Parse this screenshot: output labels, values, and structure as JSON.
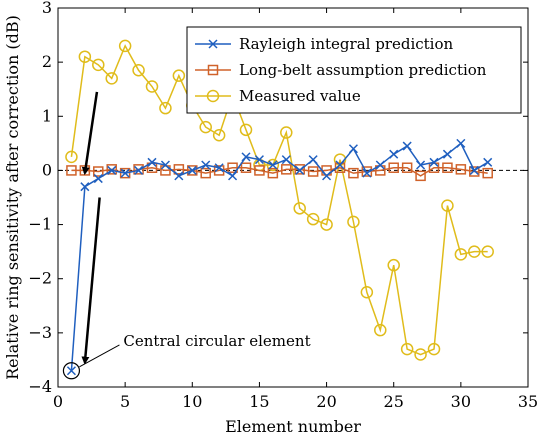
{
  "chart_data": {
    "type": "line",
    "xlabel": "Element number",
    "ylabel": "Relative ring sensitivity after correction (dB)",
    "xlim": [
      0,
      35
    ],
    "ylim": [
      -4,
      3
    ],
    "xticks": [
      0,
      5,
      10,
      15,
      20,
      25,
      30,
      35
    ],
    "yticks": [
      -4,
      -3,
      -2,
      -1,
      0,
      1,
      2,
      3
    ],
    "grid": false,
    "legend_position": "top-right",
    "x": [
      1,
      2,
      3,
      4,
      5,
      6,
      7,
      8,
      9,
      10,
      11,
      12,
      13,
      14,
      15,
      16,
      17,
      18,
      19,
      20,
      21,
      22,
      23,
      24,
      25,
      26,
      27,
      28,
      29,
      30,
      31,
      32
    ],
    "series": [
      {
        "name": "Rayleigh integral prediction",
        "color": "#1f5fbf",
        "marker": "x",
        "values": [
          -3.7,
          -0.3,
          -0.15,
          0.0,
          -0.05,
          0.0,
          0.15,
          0.1,
          -0.1,
          0.0,
          0.1,
          0.05,
          -0.1,
          0.25,
          0.2,
          0.1,
          0.2,
          0.0,
          0.2,
          -0.1,
          0.1,
          0.4,
          -0.05,
          0.1,
          0.3,
          0.45,
          0.1,
          0.15,
          0.3,
          0.5,
          0.0,
          0.15
        ]
      },
      {
        "name": "Long-belt assumption prediction",
        "color": "#d0622a",
        "marker": "square",
        "values": [
          0.0,
          0.0,
          -0.02,
          0.02,
          -0.05,
          0.02,
          0.05,
          0.0,
          0.02,
          0.0,
          -0.05,
          0.0,
          0.05,
          0.05,
          0.0,
          -0.05,
          0.02,
          0.02,
          -0.02,
          0.0,
          0.05,
          -0.05,
          -0.02,
          0.0,
          0.05,
          0.05,
          -0.1,
          0.05,
          0.05,
          0.02,
          -0.02,
          -0.05
        ]
      },
      {
        "name": "Measured value",
        "color": "#e0bc1b",
        "marker": "circle",
        "values": [
          0.25,
          2.1,
          1.95,
          1.7,
          2.3,
          1.85,
          1.55,
          1.15,
          1.75,
          1.2,
          0.8,
          0.65,
          1.4,
          0.75,
          0.1,
          0.1,
          0.7,
          -0.7,
          -0.9,
          -1.0,
          0.2,
          -0.95,
          -2.25,
          -2.95,
          -1.75,
          -3.3,
          -3.4,
          -3.3,
          -0.65,
          -1.55,
          -1.5,
          -1.5
        ]
      }
    ],
    "annotations": [
      {
        "text": "Central circular element",
        "target_x": 1,
        "target_y": -3.7
      }
    ],
    "arrows": [
      {
        "from": [
          2.9,
          1.45
        ],
        "to": [
          2.0,
          -0.05
        ]
      },
      {
        "from": [
          3.1,
          -0.5
        ],
        "to": [
          2.0,
          -3.55
        ]
      }
    ]
  }
}
